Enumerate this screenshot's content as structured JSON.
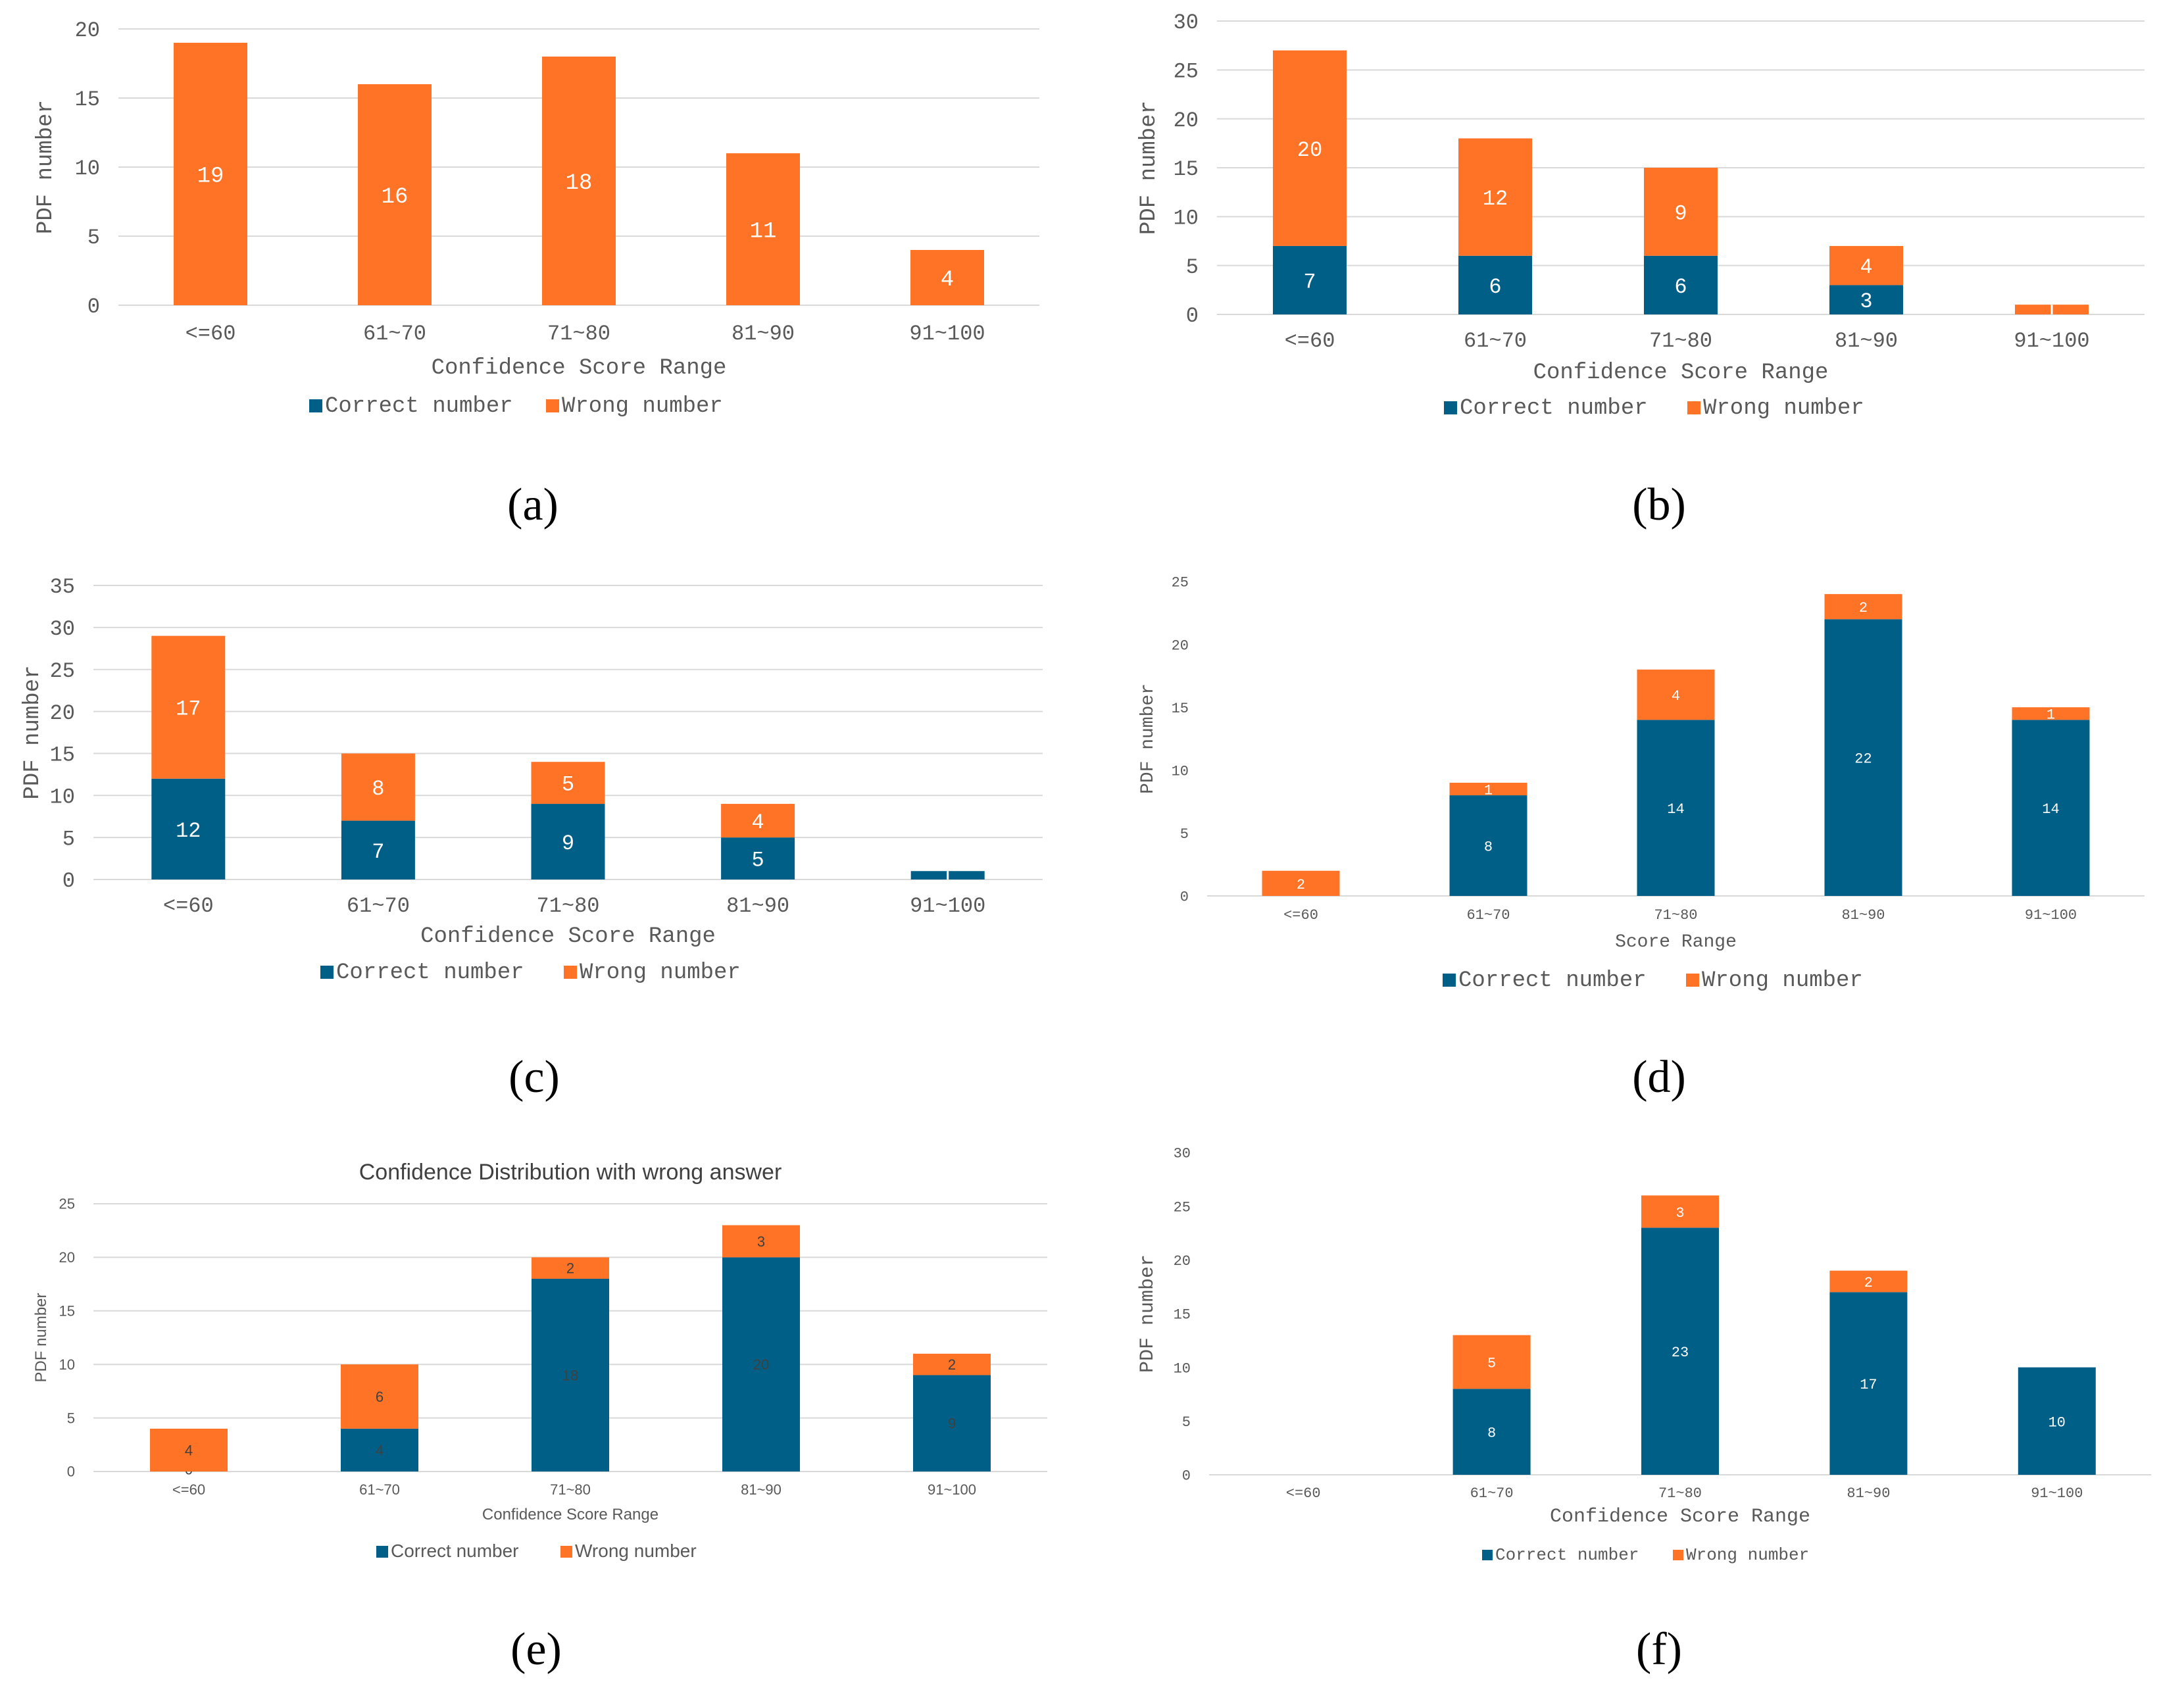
{
  "colors": {
    "correct": "#005f87",
    "wrong": "#ff7327",
    "grid": "#d9d9d9",
    "axis_text": "#595959",
    "bar_label": "#ffffff",
    "bar_label_dark": "#404040"
  },
  "chart_data": [
    {
      "panel_label": "(a)",
      "type": "bar",
      "stacked": true,
      "title": "",
      "xlabel": "Confidence Score Range",
      "ylabel": "PDF number",
      "categories": [
        "<=60",
        "61~70",
        "71~80",
        "81~90",
        "91~100"
      ],
      "yticks": [
        "0",
        "5",
        "10",
        "15",
        "20"
      ],
      "ylim": [
        0,
        20
      ],
      "grid": true,
      "legend_position": "bottom",
      "series": [
        {
          "name": "Correct number",
          "values": [
            0,
            0,
            0,
            0,
            0
          ],
          "labels": [
            "",
            "",
            "",
            "",
            ""
          ]
        },
        {
          "name": "Wrong number",
          "values": [
            19,
            16,
            18,
            11,
            4
          ],
          "labels": [
            "19",
            "16",
            "18",
            "11",
            "4"
          ]
        }
      ]
    },
    {
      "panel_label": "(b)",
      "type": "bar",
      "stacked": true,
      "title": "",
      "xlabel": "Confidence Score Range",
      "ylabel": "PDF number",
      "categories": [
        "<=60",
        "61~70",
        "71~80",
        "81~90",
        "91~100"
      ],
      "yticks": [
        "0",
        "5",
        "10",
        "15",
        "20",
        "25",
        "30"
      ],
      "ylim": [
        0,
        30
      ],
      "grid": true,
      "legend_position": "bottom",
      "series": [
        {
          "name": "Correct number",
          "values": [
            7,
            6,
            6,
            3,
            0
          ],
          "labels": [
            "7",
            "6",
            "6",
            "3",
            ""
          ]
        },
        {
          "name": "Wrong number",
          "values": [
            20,
            12,
            9,
            4,
            1
          ],
          "labels": [
            "20",
            "12",
            "9",
            "4",
            ""
          ]
        }
      ]
    },
    {
      "panel_label": "(c)",
      "type": "bar",
      "stacked": true,
      "title": "",
      "xlabel": "Confidence Score Range",
      "ylabel": "PDF number",
      "categories": [
        "<=60",
        "61~70",
        "71~80",
        "81~90",
        "91~100"
      ],
      "yticks": [
        "0",
        "5",
        "10",
        "15",
        "20",
        "25",
        "30",
        "35"
      ],
      "ylim": [
        0,
        35
      ],
      "grid": true,
      "legend_position": "bottom",
      "series": [
        {
          "name": "Correct number",
          "values": [
            12,
            7,
            9,
            5,
            1
          ],
          "labels": [
            "12",
            "7",
            "9",
            "5",
            ""
          ]
        },
        {
          "name": "Wrong number",
          "values": [
            17,
            8,
            5,
            4,
            0
          ],
          "labels": [
            "17",
            "8",
            "5",
            "4",
            ""
          ]
        }
      ]
    },
    {
      "panel_label": "(d)",
      "type": "bar",
      "stacked": true,
      "title": "",
      "xlabel": "Score Range",
      "ylabel": "PDF number",
      "categories": [
        "<=60",
        "61~70",
        "71~80",
        "81~90",
        "91~100"
      ],
      "yticks": [
        "0",
        "5",
        "10",
        "15",
        "20",
        "25"
      ],
      "ylim": [
        0,
        25
      ],
      "grid": false,
      "legend_position": "bottom",
      "series": [
        {
          "name": "Correct number",
          "values": [
            0,
            8,
            14,
            22,
            14
          ],
          "labels": [
            "",
            "8",
            "14",
            "22",
            "14"
          ]
        },
        {
          "name": "Wrong number",
          "values": [
            2,
            1,
            4,
            2,
            1
          ],
          "labels": [
            "2",
            "1",
            "4",
            "2",
            "1"
          ]
        }
      ]
    },
    {
      "panel_label": "(e)",
      "type": "bar",
      "stacked": true,
      "title": "Confidence Distribution with wrong answer",
      "xlabel": "Confidence Score Range",
      "ylabel": "PDF number",
      "categories": [
        "<=60",
        "61~70",
        "71~80",
        "81~90",
        "91~100"
      ],
      "yticks": [
        "0",
        "5",
        "10",
        "15",
        "20",
        "25"
      ],
      "ylim": [
        0,
        25
      ],
      "grid": true,
      "legend_position": "bottom",
      "series": [
        {
          "name": "Correct number",
          "values": [
            0,
            4,
            18,
            20,
            9
          ],
          "labels": [
            "0",
            "4",
            "18",
            "20",
            "9"
          ]
        },
        {
          "name": "Wrong number",
          "values": [
            4,
            6,
            2,
            3,
            2
          ],
          "labels": [
            "4",
            "6",
            "2",
            "3",
            "2"
          ]
        }
      ]
    },
    {
      "panel_label": "(f)",
      "type": "bar",
      "stacked": true,
      "title": "",
      "xlabel": "Confidence Score Range",
      "ylabel": "PDF number",
      "categories": [
        "<=60",
        "61~70",
        "71~80",
        "81~90",
        "91~100"
      ],
      "yticks": [
        "0",
        "5",
        "10",
        "15",
        "20",
        "25",
        "30"
      ],
      "ylim": [
        0,
        30
      ],
      "grid": false,
      "legend_position": "bottom",
      "series": [
        {
          "name": "Correct number",
          "values": [
            0,
            8,
            23,
            17,
            10
          ],
          "labels": [
            "",
            "8",
            "23",
            "17",
            "10"
          ]
        },
        {
          "name": "Wrong number",
          "values": [
            0,
            5,
            3,
            2,
            0
          ],
          "labels": [
            "",
            "5",
            "3",
            "2",
            ""
          ]
        }
      ]
    }
  ]
}
